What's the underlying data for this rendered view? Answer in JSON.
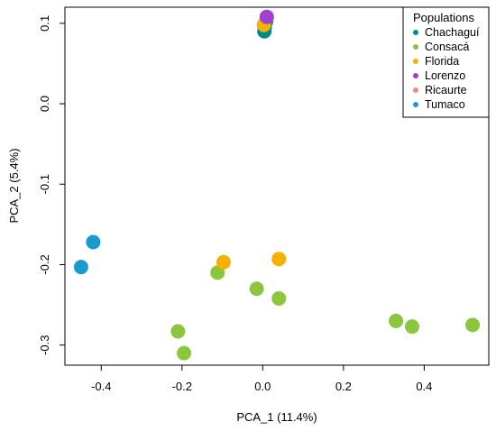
{
  "chart_data": {
    "type": "scatter",
    "xlabel": "PCA_1 (11.4%)",
    "ylabel": "PCA_2 (5.4%)",
    "xlim": [
      -0.49,
      0.56
    ],
    "ylim": [
      -0.325,
      0.12
    ],
    "xticks": [
      -0.4,
      -0.2,
      0.0,
      0.2,
      0.4
    ],
    "xtick_labels": [
      "-0.4",
      "-0.2",
      "0.0",
      "0.2",
      "0.4"
    ],
    "yticks": [
      -0.3,
      -0.2,
      -0.1,
      0.0,
      0.1
    ],
    "ytick_labels": [
      "-0.3",
      "-0.2",
      "-0.1",
      "0.0",
      "0.1"
    ],
    "grid": false,
    "legend": {
      "title": "Populations",
      "placement": "top-right"
    },
    "series": [
      {
        "name": "Chachaguí",
        "color": "#008B8B",
        "points": [
          [
            0.005,
            0.095
          ],
          [
            0.008,
            0.102
          ],
          [
            0.004,
            0.09
          ]
        ]
      },
      {
        "name": "Consacá",
        "color": "#8CC63F",
        "points": [
          [
            -0.112,
            -0.21
          ],
          [
            -0.015,
            -0.23
          ],
          [
            0.04,
            -0.242
          ],
          [
            -0.21,
            -0.283
          ],
          [
            -0.195,
            -0.31
          ],
          [
            0.33,
            -0.27
          ],
          [
            0.37,
            -0.277
          ],
          [
            0.52,
            -0.275
          ]
        ]
      },
      {
        "name": "Florida",
        "color": "#F5B000",
        "points": [
          [
            -0.097,
            -0.197
          ],
          [
            0.04,
            -0.193
          ],
          [
            0.003,
            0.098
          ]
        ]
      },
      {
        "name": "Lorenzo",
        "color": "#A040D0",
        "points": [
          [
            0.01,
            0.108
          ]
        ]
      },
      {
        "name": "Ricaurte",
        "color": "#F08C78",
        "points": []
      },
      {
        "name": "Tumaco",
        "color": "#1A9BD0",
        "points": [
          [
            -0.42,
            -0.172
          ],
          [
            -0.45,
            -0.203
          ]
        ]
      }
    ]
  }
}
